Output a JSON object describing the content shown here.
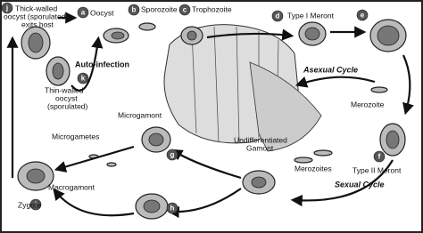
{
  "nodes": [
    {
      "letter": "j",
      "label": [
        "Thick-walled",
        "oocyst (sporulated)",
        "exits host"
      ]
    },
    {
      "letter": "a",
      "label": [
        "Oocyst"
      ]
    },
    {
      "letter": "b",
      "label": [
        "Sporozoite"
      ]
    },
    {
      "letter": "c",
      "label": [
        "Trophozoite"
      ]
    },
    {
      "letter": "d",
      "label": [
        "Type I Meront"
      ]
    },
    {
      "letter": "e"
    },
    {
      "label": [
        "Merozoite"
      ]
    },
    {
      "letter": "f",
      "label": [
        "Type II Meront"
      ]
    },
    {
      "label": [
        "Merozoites"
      ]
    },
    {
      "label": [
        "Undifferentiated",
        "Gamont"
      ]
    },
    {
      "letter": "g",
      "label": [
        "Microgamont"
      ]
    },
    {
      "label": [
        "Microgametes"
      ]
    },
    {
      "letter": "h",
      "label": [
        "Macrogamont"
      ]
    },
    {
      "letter": "i",
      "label": [
        "Zygote"
      ]
    },
    {
      "letter": "k",
      "label": [
        "Thin-walled",
        "oocyst",
        "(sporulated)"
      ]
    }
  ],
  "cycles": [
    "Auto-infection",
    "Asexual Cycle",
    "Sexual Cycle"
  ]
}
